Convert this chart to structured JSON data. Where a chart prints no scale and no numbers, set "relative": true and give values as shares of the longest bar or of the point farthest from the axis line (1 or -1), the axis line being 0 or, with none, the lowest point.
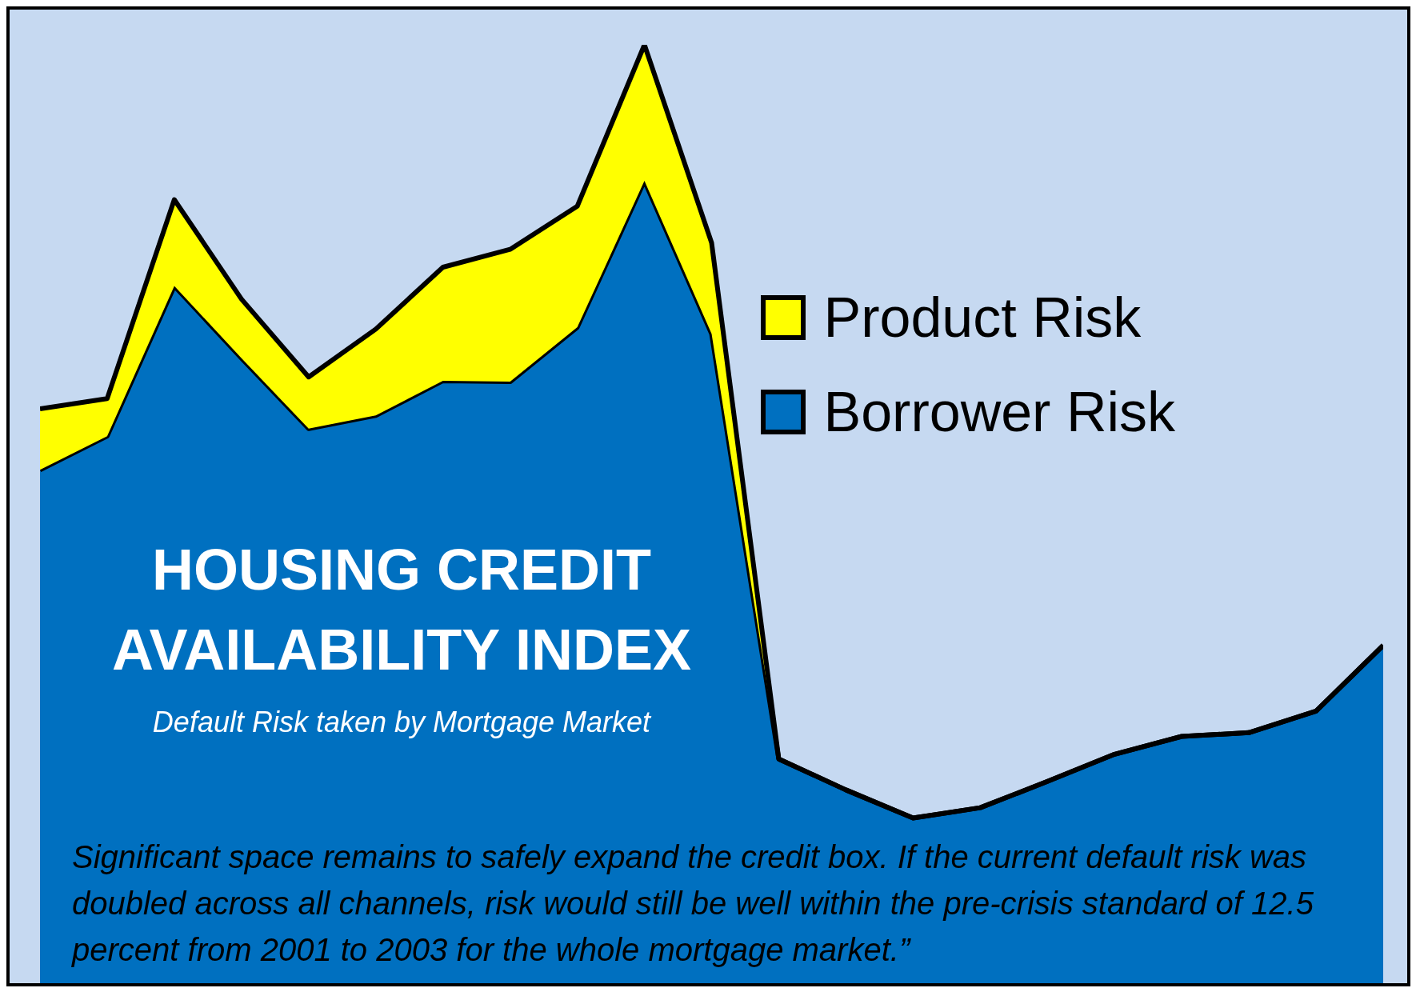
{
  "chart_data": {
    "type": "area",
    "title": "HOUSING CREDIT AVAILABILITY INDEX",
    "subtitle": "Default Risk taken by Mortgage Market",
    "annotations": [
      "Significant space remains to safely expand the credit box. If the current default risk was doubled across all channels, risk would still be well within the pre-crisis standard of 12.5 percent from 2001 to 2003 for the whole mortgage market.”"
    ],
    "categories": [
      null,
      null,
      null,
      null,
      null,
      null,
      null,
      null,
      null,
      null,
      null,
      null,
      null,
      null,
      null,
      null,
      null,
      null,
      null,
      null,
      null
    ],
    "relative": true,
    "stacked": true,
    "legend": "top right",
    "series": [
      {
        "name": "Borrower Risk",
        "color": "#0070c0",
        "values": [
          0.547,
          0.583,
          0.743,
          0.666,
          0.591,
          0.605,
          0.642,
          0.641,
          0.699,
          0.855,
          0.692,
          0.239,
          0.206,
          0.176,
          0.187,
          0.215,
          0.244,
          0.263,
          0.267,
          0.29,
          0.36
        ]
      },
      {
        "name": "Product Risk",
        "color": "#ffff00",
        "values": [
          0.065,
          0.04,
          0.092,
          0.063,
          0.055,
          0.092,
          0.121,
          0.141,
          0.129,
          0.145,
          0.097,
          0,
          0,
          0,
          0,
          0,
          0,
          0,
          0,
          0,
          0
        ]
      }
    ]
  }
}
